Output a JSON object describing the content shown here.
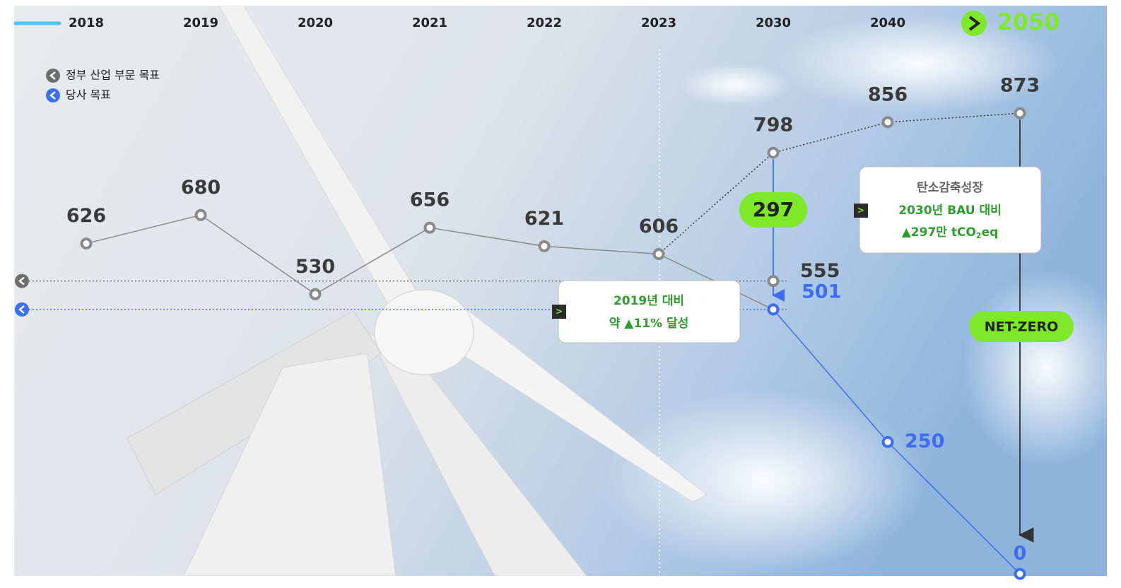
{
  "chart_data": {
    "type": "line",
    "categories": [
      "2018",
      "2019",
      "2020",
      "2021",
      "2022",
      "2023",
      "2030",
      "2040",
      "2050"
    ],
    "ylim": [
      0,
      900
    ],
    "series": [
      {
        "color": "#8a8a8a",
        "style": "solid",
        "values": [
          626,
          680,
          530,
          656,
          621,
          606,
          null,
          null,
          null
        ]
      },
      {
        "color": "#3a3a3a",
        "style": "dotted",
        "values": [
          null,
          null,
          null,
          null,
          null,
          606,
          798,
          856,
          873
        ]
      },
      {
        "name": "정부 산업 부문 목표",
        "color": "#6e6e6e",
        "style": "reference",
        "values": [
          null,
          null,
          null,
          null,
          null,
          null,
          555,
          null,
          null
        ]
      },
      {
        "name": "당사 목표",
        "color": "#3d6ef2",
        "style": "solid",
        "values": [
          null,
          null,
          null,
          null,
          null,
          null,
          501,
          250,
          0
        ]
      }
    ],
    "reduction": 297,
    "net_zero": "NET-ZERO",
    "box_2019": {
      "line1": "2019년 대비",
      "line2": "약 ▲11% 달성"
    },
    "box_bau": {
      "title": "탄소감축성장",
      "line1": "2030년 BAU 대비",
      "line2": "▲297만 tCO",
      "subscript": "2",
      "line2_end": "eq"
    }
  }
}
